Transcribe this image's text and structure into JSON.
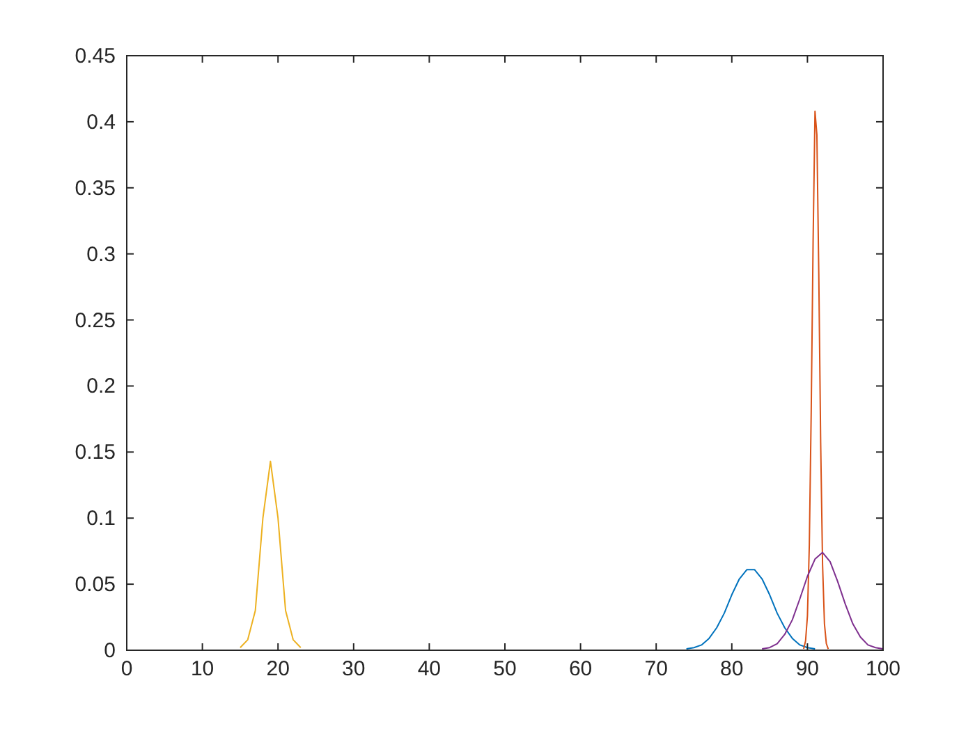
{
  "chart_data": {
    "type": "line",
    "xlim": [
      0,
      100
    ],
    "ylim": [
      0,
      0.45
    ],
    "xticks": [
      0,
      10,
      20,
      30,
      40,
      50,
      60,
      70,
      80,
      90,
      100
    ],
    "yticks": [
      0,
      0.05,
      0.1,
      0.15,
      0.2,
      0.25,
      0.3,
      0.35,
      0.4,
      0.45
    ],
    "grid": false,
    "marker": "none",
    "line_style": "solid",
    "series": [
      {
        "color": "#0072bd",
        "x": [
          74,
          75,
          76,
          77,
          78,
          79,
          80,
          81,
          82,
          83,
          84,
          85,
          86,
          87,
          88,
          89,
          90,
          91
        ],
        "values": [
          0.001,
          0.002,
          0.004,
          0.009,
          0.017,
          0.028,
          0.042,
          0.054,
          0.061,
          0.061,
          0.054,
          0.042,
          0.028,
          0.017,
          0.009,
          0.004,
          0.002,
          0.001
        ]
      },
      {
        "color": "#d95319",
        "x": [
          89.5,
          89.75,
          90,
          90.25,
          90.5,
          90.75,
          91,
          91.25,
          91.5,
          91.75,
          92,
          92.25,
          92.5,
          92.75
        ],
        "values": [
          0.001,
          0.007,
          0.026,
          0.08,
          0.181,
          0.31,
          0.408,
          0.39,
          0.285,
          0.157,
          0.065,
          0.02,
          0.005,
          0.001
        ]
      },
      {
        "color": "#edb120",
        "x": [
          15,
          16,
          17,
          18,
          19,
          20,
          21,
          22,
          23
        ],
        "values": [
          0.002,
          0.008,
          0.03,
          0.1,
          0.143,
          0.1,
          0.03,
          0.008,
          0.002
        ]
      },
      {
        "color": "#7e2f8e",
        "x": [
          84,
          85,
          86,
          87,
          88,
          89,
          90,
          91,
          92,
          93,
          94,
          95,
          96,
          97,
          98,
          99,
          100
        ],
        "values": [
          0.001,
          0.002,
          0.005,
          0.012,
          0.023,
          0.039,
          0.056,
          0.069,
          0.074,
          0.067,
          0.052,
          0.035,
          0.02,
          0.01,
          0.004,
          0.002,
          0.001
        ]
      }
    ]
  }
}
